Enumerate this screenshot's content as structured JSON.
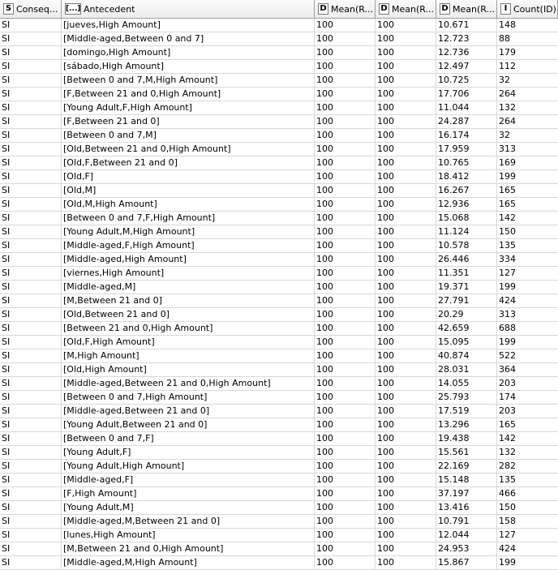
{
  "columns": [
    {
      "type": "S",
      "label": "Conseq..."
    },
    {
      "type": "[...]",
      "label": "Antecedent"
    },
    {
      "type": "D",
      "label": "Mean(R..."
    },
    {
      "type": "D",
      "label": "Mean(R..."
    },
    {
      "type": "D",
      "label": "Mean(R..."
    },
    {
      "type": "I",
      "label": "Count(ID)"
    }
  ],
  "rows": [
    [
      "SI",
      "[jueves,High Amount]",
      "100",
      "100",
      "10.671",
      "148"
    ],
    [
      "SI",
      "[Middle-aged,Between 0 and 7]",
      "100",
      "100",
      "12.723",
      "88"
    ],
    [
      "SI",
      "[domingo,High Amount]",
      "100",
      "100",
      "12.736",
      "179"
    ],
    [
      "SI",
      "[sábado,High Amount]",
      "100",
      "100",
      "12.497",
      "112"
    ],
    [
      "SI",
      "[Between 0 and 7,M,High Amount]",
      "100",
      "100",
      "10.725",
      "32"
    ],
    [
      "SI",
      "[F,Between 21 and 0,High Amount]",
      "100",
      "100",
      "17.706",
      "264"
    ],
    [
      "SI",
      "[Young Adult,F,High Amount]",
      "100",
      "100",
      "11.044",
      "132"
    ],
    [
      "SI",
      "[F,Between 21 and 0]",
      "100",
      "100",
      "24.287",
      "264"
    ],
    [
      "SI",
      "[Between 0 and 7,M]",
      "100",
      "100",
      "16.174",
      "32"
    ],
    [
      "SI",
      "[Old,Between 21 and 0,High Amount]",
      "100",
      "100",
      "17.959",
      "313"
    ],
    [
      "SI",
      "[Old,F,Between 21 and 0]",
      "100",
      "100",
      "10.765",
      "169"
    ],
    [
      "SI",
      "[Old,F]",
      "100",
      "100",
      "18.412",
      "199"
    ],
    [
      "SI",
      "[Old,M]",
      "100",
      "100",
      "16.267",
      "165"
    ],
    [
      "SI",
      "[Old,M,High Amount]",
      "100",
      "100",
      "12.936",
      "165"
    ],
    [
      "SI",
      "[Between 0 and 7,F,High Amount]",
      "100",
      "100",
      "15.068",
      "142"
    ],
    [
      "SI",
      "[Young Adult,M,High Amount]",
      "100",
      "100",
      "11.124",
      "150"
    ],
    [
      "SI",
      "[Middle-aged,F,High Amount]",
      "100",
      "100",
      "10.578",
      "135"
    ],
    [
      "SI",
      "[Middle-aged,High Amount]",
      "100",
      "100",
      "26.446",
      "334"
    ],
    [
      "SI",
      "[viernes,High Amount]",
      "100",
      "100",
      "11.351",
      "127"
    ],
    [
      "SI",
      "[Middle-aged,M]",
      "100",
      "100",
      "19.371",
      "199"
    ],
    [
      "SI",
      "[M,Between 21 and 0]",
      "100",
      "100",
      "27.791",
      "424"
    ],
    [
      "SI",
      "[Old,Between 21 and 0]",
      "100",
      "100",
      "20.29",
      "313"
    ],
    [
      "SI",
      "[Between 21 and 0,High Amount]",
      "100",
      "100",
      "42.659",
      "688"
    ],
    [
      "SI",
      "[Old,F,High Amount]",
      "100",
      "100",
      "15.095",
      "199"
    ],
    [
      "SI",
      "[M,High Amount]",
      "100",
      "100",
      "40.874",
      "522"
    ],
    [
      "SI",
      "[Old,High Amount]",
      "100",
      "100",
      "28.031",
      "364"
    ],
    [
      "SI",
      "[Middle-aged,Between 21 and 0,High Amount]",
      "100",
      "100",
      "14.055",
      "203"
    ],
    [
      "SI",
      "[Between 0 and 7,High Amount]",
      "100",
      "100",
      "25.793",
      "174"
    ],
    [
      "SI",
      "[Middle-aged,Between 21 and 0]",
      "100",
      "100",
      "17.519",
      "203"
    ],
    [
      "SI",
      "[Young Adult,Between 21 and 0]",
      "100",
      "100",
      "13.296",
      "165"
    ],
    [
      "SI",
      "[Between 0 and 7,F]",
      "100",
      "100",
      "19.438",
      "142"
    ],
    [
      "SI",
      "[Young Adult,F]",
      "100",
      "100",
      "15.561",
      "132"
    ],
    [
      "SI",
      "[Young Adult,High Amount]",
      "100",
      "100",
      "22.169",
      "282"
    ],
    [
      "SI",
      "[Middle-aged,F]",
      "100",
      "100",
      "15.148",
      "135"
    ],
    [
      "SI",
      "[F,High Amount]",
      "100",
      "100",
      "37.197",
      "466"
    ],
    [
      "SI",
      "[Young Adult,M]",
      "100",
      "100",
      "13.416",
      "150"
    ],
    [
      "SI",
      "[Middle-aged,M,Between 21 and 0]",
      "100",
      "100",
      "10.791",
      "158"
    ],
    [
      "SI",
      "[lunes,High Amount]",
      "100",
      "100",
      "12.044",
      "127"
    ],
    [
      "SI",
      "[M,Between 21 and 0,High Amount]",
      "100",
      "100",
      "24.953",
      "424"
    ],
    [
      "SI",
      "[Middle-aged,M,High Amount]",
      "100",
      "100",
      "15.867",
      "199"
    ]
  ]
}
